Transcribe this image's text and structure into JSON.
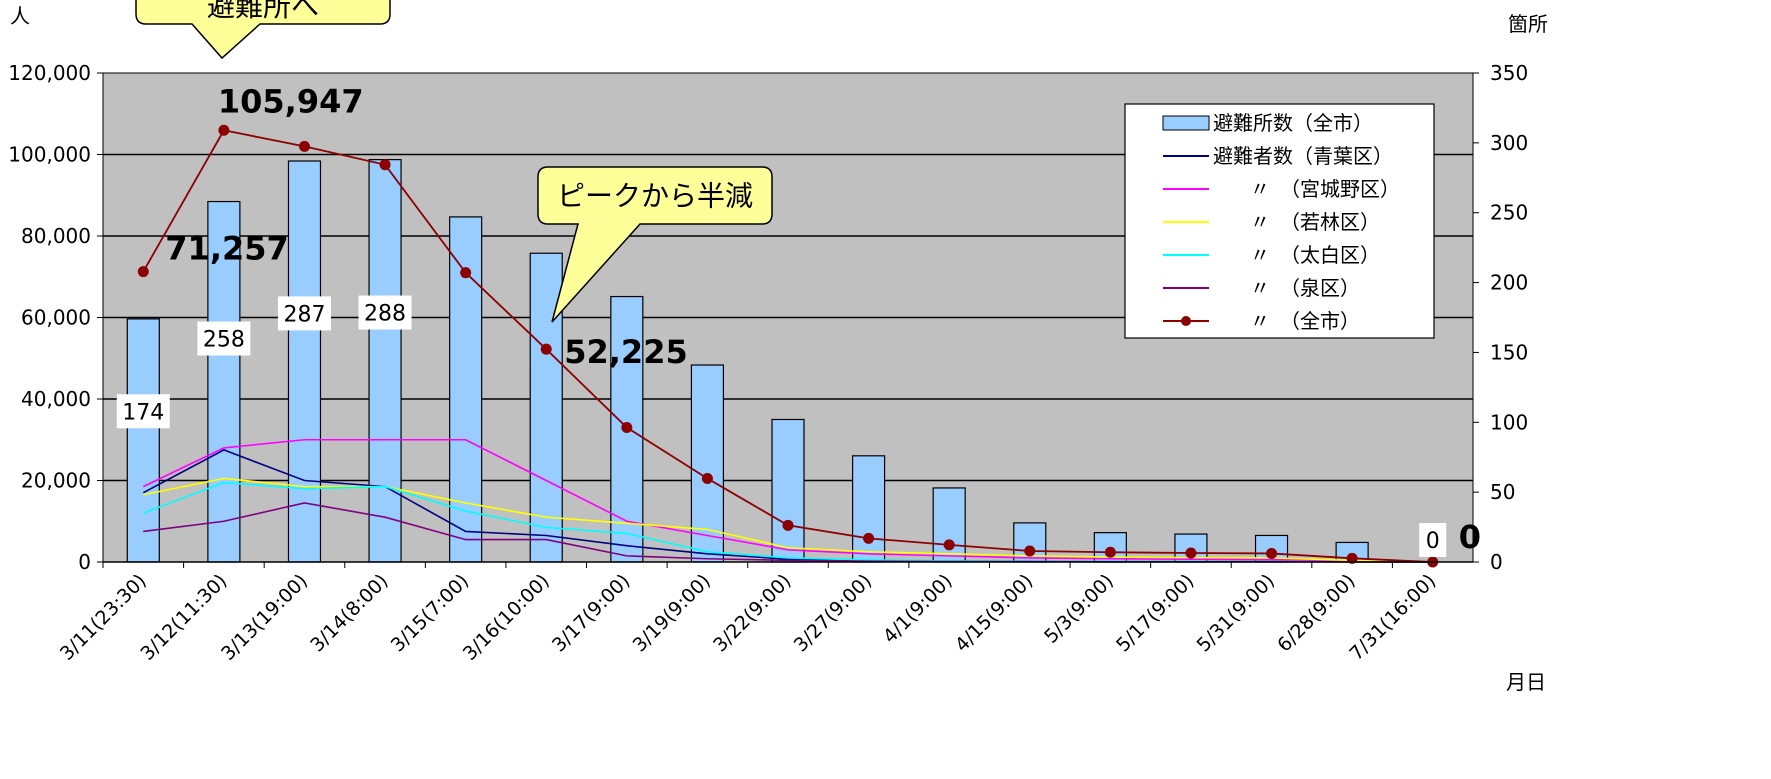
{
  "chart_data": {
    "type": "bar",
    "units": {
      "y_left": "人",
      "y_right": "箇所",
      "x": "月日"
    },
    "categories": [
      "3/11(23:30)",
      "3/12(11:30)",
      "3/13(19:00)",
      "3/14(8:00)",
      "3/15(7:00)",
      "3/16(10:00)",
      "3/17(9:00)",
      "3/19(9:00)",
      "3/22(9:00)",
      "3/27(9:00)",
      "4/1(9:00)",
      "4/15(9:00)",
      "5/3(9:00)",
      "5/17(9:00)",
      "5/31(9:00)",
      "6/28(9:00)",
      "7/31(16:00)"
    ],
    "y_left_ticks": [
      "0",
      "20,000",
      "40,000",
      "60,000",
      "80,000",
      "100,000",
      "120,000"
    ],
    "y_right_ticks": [
      "0",
      "50",
      "100",
      "150",
      "200",
      "250",
      "300",
      "350"
    ],
    "ylim_left": [
      0,
      120000
    ],
    "ylim_right": [
      0,
      350
    ],
    "grid": true,
    "legend_position": "top-right",
    "bar_series": {
      "name": "避難所数（全市）",
      "color": "#99ccff",
      "values": [
        174,
        258,
        287,
        288,
        247,
        221,
        190,
        141,
        102,
        76,
        53,
        28,
        21,
        20,
        19,
        14,
        0
      ]
    },
    "line_series": [
      {
        "name": "避難者数（青葉区）",
        "color": "#000080",
        "markers": false,
        "values": [
          17000,
          27500,
          20000,
          18500,
          7500,
          6500,
          4000,
          2000,
          700,
          300,
          200,
          100,
          100,
          100,
          100,
          50,
          0
        ]
      },
      {
        "name": "〃　（宮城野区）",
        "color": "#ff00ff",
        "markers": false,
        "values": [
          18500,
          28000,
          30000,
          30000,
          30000,
          20000,
          10000,
          6500,
          3000,
          2000,
          1500,
          1000,
          800,
          700,
          600,
          300,
          0
        ]
      },
      {
        "name": "〃　（若林区）",
        "color": "#ffff00",
        "markers": false,
        "values": [
          16500,
          20500,
          18500,
          18500,
          14500,
          11000,
          9500,
          8000,
          3500,
          2500,
          2000,
          1500,
          1200,
          1100,
          1000,
          400,
          0
        ]
      },
      {
        "name": "〃　（太白区）",
        "color": "#00ffff",
        "markers": false,
        "values": [
          12000,
          19500,
          18000,
          18500,
          12500,
          8500,
          7000,
          2500,
          1000,
          500,
          300,
          200,
          150,
          150,
          100,
          50,
          0
        ]
      },
      {
        "name": "〃　（泉区）",
        "color": "#800080",
        "markers": false,
        "values": [
          7500,
          10000,
          14500,
          11000,
          5500,
          5500,
          1500,
          800,
          400,
          200,
          100,
          100,
          50,
          50,
          50,
          30,
          0
        ]
      },
      {
        "name": "〃　（全市）",
        "color": "#8b0000",
        "markers": true,
        "values": [
          71257,
          105947,
          102000,
          97500,
          71000,
          52225,
          33000,
          20500,
          9000,
          5800,
          4200,
          2700,
          2400,
          2200,
          2100,
          900,
          0
        ]
      }
    ],
    "bar_labels": [
      {
        "index": 0,
        "text": "174"
      },
      {
        "index": 1,
        "text": "258"
      },
      {
        "index": 2,
        "text": "287"
      },
      {
        "index": 3,
        "text": "288"
      },
      {
        "index": 16,
        "text": "0"
      }
    ],
    "value_labels": [
      {
        "index": 0,
        "text": "71,257"
      },
      {
        "index": 1,
        "text": "105,947"
      },
      {
        "index": 5,
        "text": "52,225"
      },
      {
        "index": 16,
        "text": "0"
      }
    ],
    "annotations": [
      {
        "text": "避難所へ",
        "points_to_index": 1
      },
      {
        "text": "ピークから半減",
        "points_to_index": 5
      }
    ]
  }
}
